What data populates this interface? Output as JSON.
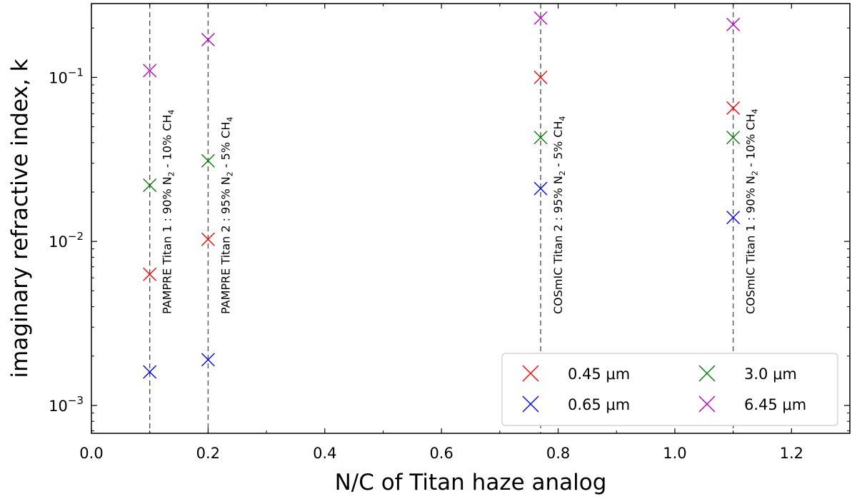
{
  "chart_data": {
    "type": "scatter",
    "xlabel": "N/C of Titan haze analog",
    "ylabel": "imaginary refractive index, k",
    "xlim": [
      0.0,
      1.3
    ],
    "ylim_log10": [
      -3.17,
      -0.55
    ],
    "yscale": "log",
    "x_ticks": [
      0.0,
      0.2,
      0.4,
      0.6,
      0.8,
      1.0,
      1.2
    ],
    "x_tick_labels": [
      "0.0",
      "0.2",
      "0.4",
      "0.6",
      "0.8",
      "1.0",
      "1.2"
    ],
    "y_ticks": [
      {
        "value": 0.001,
        "base": "10",
        "exp": "−3"
      },
      {
        "value": 0.01,
        "base": "10",
        "exp": "−2"
      },
      {
        "value": 0.1,
        "base": "10",
        "exp": "−1"
      }
    ],
    "grid": false,
    "legend_position": "lower-right",
    "marker": "x",
    "series": [
      {
        "name": "0.45 μm",
        "color": "#ff0000",
        "points": [
          [
            0.1,
            0.0063
          ],
          [
            0.2,
            0.0103
          ],
          [
            0.77,
            0.1
          ],
          [
            1.1,
            0.065
          ]
        ]
      },
      {
        "name": "0.65 μm",
        "color": "#0000ff",
        "points": [
          [
            0.1,
            0.0016
          ],
          [
            0.2,
            0.0019
          ],
          [
            0.77,
            0.021
          ],
          [
            1.1,
            0.014
          ]
        ]
      },
      {
        "name": "3.0 μm",
        "color": "#008000",
        "points": [
          [
            0.1,
            0.022
          ],
          [
            0.2,
            0.031
          ],
          [
            0.77,
            0.043
          ],
          [
            1.1,
            0.043
          ]
        ]
      },
      {
        "name": "6.45 μm",
        "color": "#bf00bf",
        "points": [
          [
            0.1,
            0.11
          ],
          [
            0.2,
            0.17
          ],
          [
            0.77,
            0.23
          ],
          [
            1.1,
            0.21
          ]
        ]
      }
    ],
    "vlines": [
      {
        "x": 0.1,
        "parts": {
          "pre": "PAMPRE Titan 1 : 90% N",
          "sub1": "2",
          "mid": " - 10% CH",
          "sub2": "4"
        }
      },
      {
        "x": 0.2,
        "parts": {
          "pre": "PAMPRE Titan 2 : 95% N",
          "sub1": "2",
          "mid": " - 5% CH",
          "sub2": "4"
        }
      },
      {
        "x": 0.77,
        "parts": {
          "pre": "COSmIC Titan 2 : 95% N",
          "sub1": "2",
          "mid": " - 5% CH",
          "sub2": "4"
        }
      },
      {
        "x": 1.1,
        "parts": {
          "pre": "COSmIC Titan 1 : 90% N",
          "sub1": "2",
          "mid": " - 10% CH",
          "sub2": "4"
        }
      }
    ]
  }
}
